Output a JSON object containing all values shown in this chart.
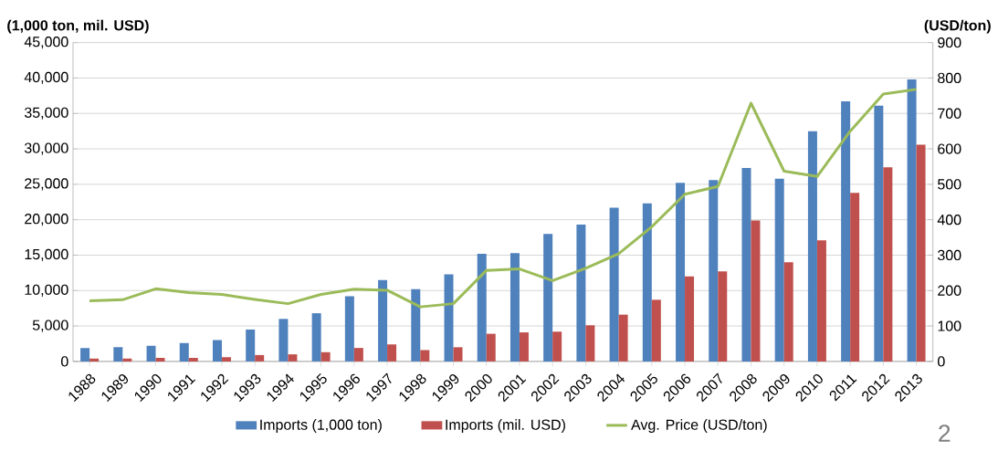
{
  "chart_data": {
    "type": "bar",
    "ylabel": "(1,000 ton, mil. USD)",
    "y2label": "(USD/ton)",
    "categories": [
      "1988",
      "1989",
      "1990",
      "1991",
      "1992",
      "1993",
      "1994",
      "1995",
      "1996",
      "1997",
      "1998",
      "1999",
      "2000",
      "2001",
      "2002",
      "2003",
      "2004",
      "2005",
      "2006",
      "2007",
      "2008",
      "2009",
      "2010",
      "2011",
      "2012",
      "2013"
    ],
    "series": [
      {
        "name": "Imports (1,000 ton)",
        "color": "#4f81bd",
        "values": [
          1900,
          2000,
          2200,
          2600,
          3000,
          4500,
          6000,
          6800,
          9200,
          11500,
          10200,
          12300,
          15200,
          15300,
          18000,
          19300,
          21700,
          22300,
          25200,
          25600,
          27300,
          25800,
          32500,
          36700,
          36100,
          39800
        ]
      },
      {
        "name": "Imports (mil. USD)",
        "color": "#c0504d",
        "values": [
          400,
          400,
          500,
          500,
          600,
          900,
          1000,
          1300,
          1900,
          2400,
          1600,
          2000,
          3900,
          4100,
          4200,
          5100,
          6600,
          8700,
          12000,
          12700,
          19900,
          14000,
          17100,
          23800,
          27400,
          30600
        ]
      },
      {
        "name": "Avg. Price (USD/ton)",
        "type": "line",
        "axis": "y2",
        "color": "#9bbb59",
        "values": [
          171,
          174,
          205,
          194,
          189,
          175,
          163,
          189,
          204,
          201,
          154,
          163,
          257,
          261,
          228,
          263,
          304,
          380,
          472,
          494,
          729,
          537,
          522,
          650,
          755,
          768
        ]
      }
    ],
    "ylim": [
      0,
      45000
    ],
    "yticks": [
      0,
      {
        "value": 5000,
        "label": "5,000"
      },
      {
        "value": 10000,
        "label": "10,000"
      },
      {
        "value": 15000,
        "label": "15,000"
      },
      {
        "value": 20000,
        "label": "20,000"
      },
      {
        "value": 25000,
        "label": "25,000"
      },
      {
        "value": 30000,
        "label": "30,000"
      },
      {
        "value": 35000,
        "label": "35,000"
      },
      {
        "value": 40000,
        "label": "40,000"
      },
      {
        "value": 45000,
        "label": "45,000"
      }
    ],
    "y2lim": [
      0,
      900
    ],
    "y2ticks": [
      0,
      100,
      200,
      300,
      400,
      500,
      600,
      700,
      800,
      900
    ],
    "grid": "y",
    "legend": "bottom",
    "annotations": [
      "2"
    ]
  }
}
